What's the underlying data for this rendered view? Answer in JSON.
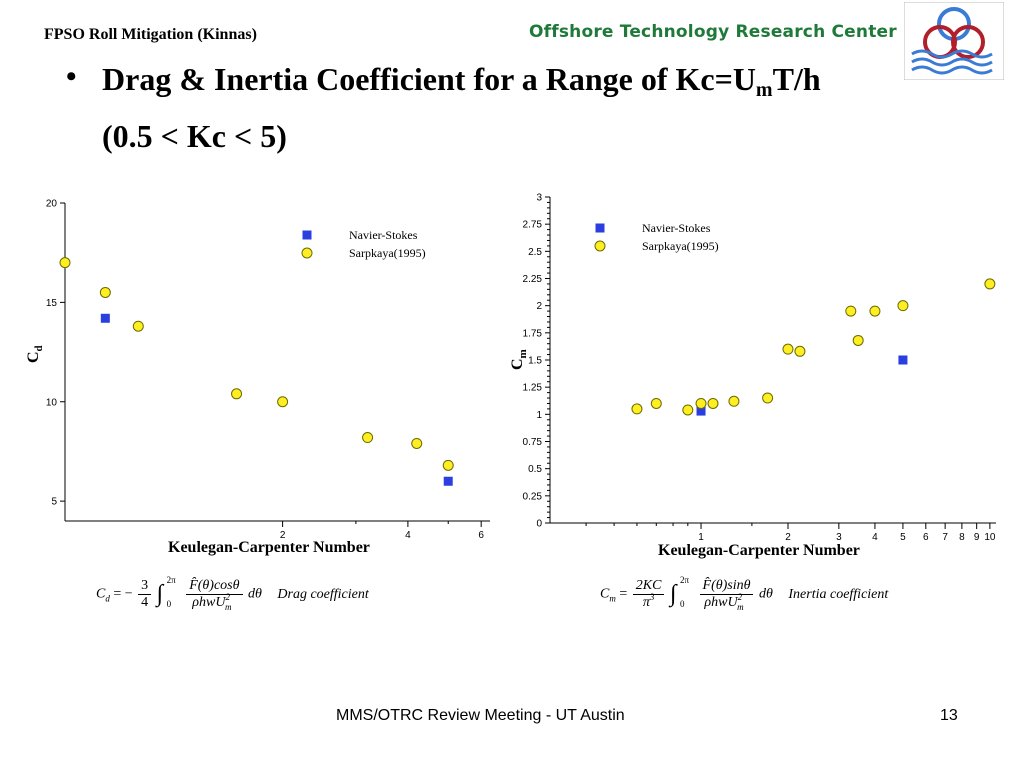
{
  "header": {
    "title": "FPSO Roll Mitigation (Kinnas)",
    "org": "Offshore Technology Research Center"
  },
  "slide": {
    "bullet": "•",
    "title_part1": "Drag & Inertia Coefficient for a Range of Kc=U",
    "title_sub": "m",
    "title_part2": "T/h (0.5 < Kc < 5)"
  },
  "colors": {
    "navier_stokes": "#2b3fe0",
    "sarpkaya_fill": "#ffee22",
    "sarpkaya_stroke": "#6b6b00",
    "org_green": "#1f7a3a",
    "logo_red": "#b01f2a",
    "logo_blue": "#3a7bd5"
  },
  "chart_data": [
    {
      "type": "scatter",
      "xscale": "log",
      "xlabel": "Keulegan-Carpenter Number",
      "ylabel": "C",
      "ylabel_sub": "d",
      "ylim": [
        4,
        20
      ],
      "xlim": [
        0.6,
        6.3
      ],
      "yticks": [
        5,
        10,
        15,
        20
      ],
      "xticks": [
        2,
        4,
        6
      ],
      "legend_position": "top-right",
      "series": [
        {
          "name": "Navier-Stokes",
          "marker": "square",
          "x": [
            0.75,
            5
          ],
          "y": [
            14.2,
            6.0
          ]
        },
        {
          "name": "Sarpkaya(1995)",
          "marker": "circle",
          "x": [
            0.6,
            0.75,
            0.9,
            1.55,
            2.0,
            3.2,
            4.2,
            5.0
          ],
          "y": [
            17.0,
            15.5,
            13.8,
            10.4,
            10.0,
            8.2,
            7.9,
            6.8
          ]
        }
      ]
    },
    {
      "type": "scatter",
      "xscale": "log",
      "xlabel": "Keulegan-Carpenter Number",
      "ylabel": "C",
      "ylabel_sub": "m",
      "ylim": [
        0,
        3
      ],
      "xlim": [
        0.3,
        10.5
      ],
      "yticks": [
        "0",
        "0.25",
        "0.5",
        "0.75",
        "1",
        "1.25",
        "1.5",
        "1.75",
        "2",
        "2.25",
        "2.5",
        "2.75",
        "3"
      ],
      "xticks": [
        "1",
        "2",
        "3",
        "4",
        "5",
        "6",
        "7",
        "8",
        "9",
        "10"
      ],
      "legend_position": "top-left",
      "series": [
        {
          "name": "Navier-Stokes",
          "marker": "square",
          "x": [
            1.0,
            5.0
          ],
          "y": [
            1.03,
            1.5
          ]
        },
        {
          "name": "Sarpkaya(1995)",
          "marker": "circle",
          "x": [
            0.6,
            0.7,
            0.9,
            1.0,
            1.1,
            1.3,
            1.7,
            2.0,
            2.2,
            3.3,
            3.5,
            4.0,
            5.0,
            10.0
          ],
          "y": [
            1.05,
            1.1,
            1.04,
            1.1,
            1.1,
            1.12,
            1.15,
            1.6,
            1.58,
            1.95,
            1.68,
            1.95,
            2.0,
            2.2
          ]
        }
      ]
    }
  ],
  "formulas": {
    "drag": {
      "lhs": "C",
      "lhs_sub": "d",
      "eq": "= −",
      "coef_num": "3",
      "coef_den": "4",
      "int_upper": "2π",
      "int_lower": "0",
      "num": "F̂(θ)cosθ",
      "den": "ρhwU",
      "den_sup": "2",
      "den_sub": "m",
      "dtheta": "dθ",
      "label": "Drag   coefficient"
    },
    "inertia": {
      "lhs": "C",
      "lhs_sub": "m",
      "eq": "=",
      "coef_num": "2KC",
      "coef_den": "π",
      "coef_den_sup": "3",
      "int_upper": "2π",
      "int_lower": "0",
      "num": "F̂(θ)sinθ",
      "den": "ρhwU",
      "den_sup": "2",
      "den_sub": "m",
      "dtheta": "dθ",
      "label": "Inertia   coefficient"
    }
  },
  "footer": {
    "text": "MMS/OTRC Review Meeting - UT Austin",
    "page": "13"
  }
}
